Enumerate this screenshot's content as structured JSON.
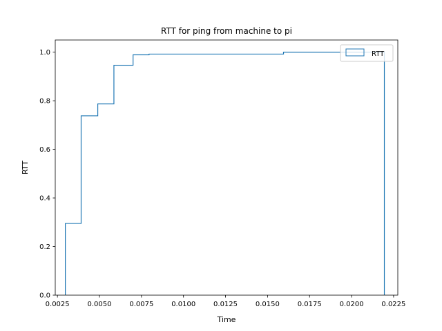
{
  "chart_data": {
    "type": "line",
    "subtype": "step-histogram-cumulative",
    "title": "RTT for ping from machine to pi",
    "xlabel": "Time",
    "ylabel": "RTT",
    "xlim": [
      0.00237,
      0.02275
    ],
    "ylim": [
      0,
      1.05
    ],
    "xticks": [
      0.0025,
      0.005,
      0.0075,
      0.01,
      0.0125,
      0.015,
      0.0175,
      0.02,
      0.0225
    ],
    "xtick_labels": [
      "0.0025",
      "0.0050",
      "0.0075",
      "0.0100",
      "0.0125",
      "0.0150",
      "0.0175",
      "0.0200",
      "0.0225"
    ],
    "yticks": [
      0,
      0.2,
      0.4,
      0.6,
      0.8,
      1.0
    ],
    "ytick_labels": [
      "0.0",
      "0.2",
      "0.4",
      "0.6",
      "0.8",
      "1.0"
    ],
    "grid": false,
    "legend_position": "top-right",
    "series": [
      {
        "name": "RTT",
        "color": "#1f77b4",
        "bin_edges": [
          0.00297,
          0.00391,
          0.0049,
          0.00586,
          0.007,
          0.00795,
          0.01595,
          0.02195
        ],
        "cumulative_values": [
          0.295,
          0.738,
          0.787,
          0.946,
          0.989,
          0.992,
          1.0
        ]
      }
    ]
  }
}
